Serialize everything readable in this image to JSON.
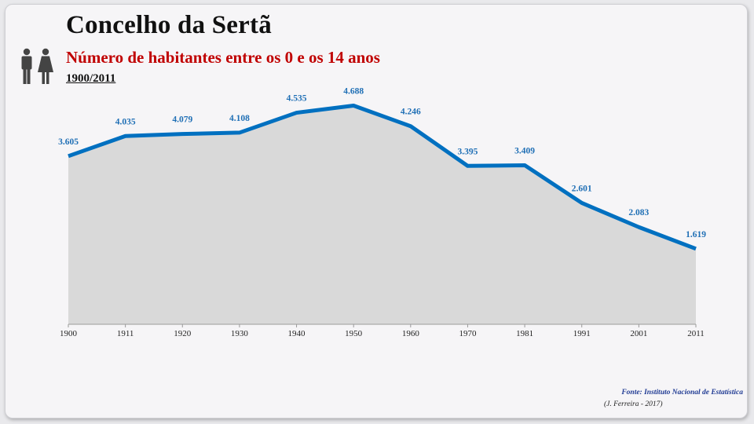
{
  "header": {
    "title": "Concelho da Sertã",
    "subtitle": "Número de habitantes entre os 0 e os 14 anos",
    "period": "1900/2011"
  },
  "footer": {
    "source": "Fonte: Instituto Nacional de Estatística",
    "author": "(J. Ferreira - 2017)"
  },
  "colors": {
    "line": "#0070c0",
    "area": "#d9d9d9",
    "title": "#111111",
    "subtitle": "#c00000",
    "labels": "#1f6fb5"
  },
  "icons": [
    "people-icon"
  ],
  "chart_data": {
    "type": "area",
    "x": [
      "1900",
      "1911",
      "1920",
      "1930",
      "1940",
      "1950",
      "1960",
      "1970",
      "1981",
      "1991",
      "2001",
      "2011"
    ],
    "values": [
      3605,
      4035,
      4079,
      4108,
      4535,
      4688,
      4246,
      3395,
      3409,
      2601,
      2083,
      1619
    ],
    "data_labels": [
      "3.605",
      "4.035",
      "4.079",
      "4.108",
      "4.535",
      "4.688",
      "4.246",
      "3.395",
      "3.409",
      "2.601",
      "2.083",
      "1.619"
    ],
    "title": "",
    "xlabel": "",
    "ylabel": "",
    "ylim": [
      0,
      5100
    ],
    "grid": false,
    "legend": "none"
  }
}
